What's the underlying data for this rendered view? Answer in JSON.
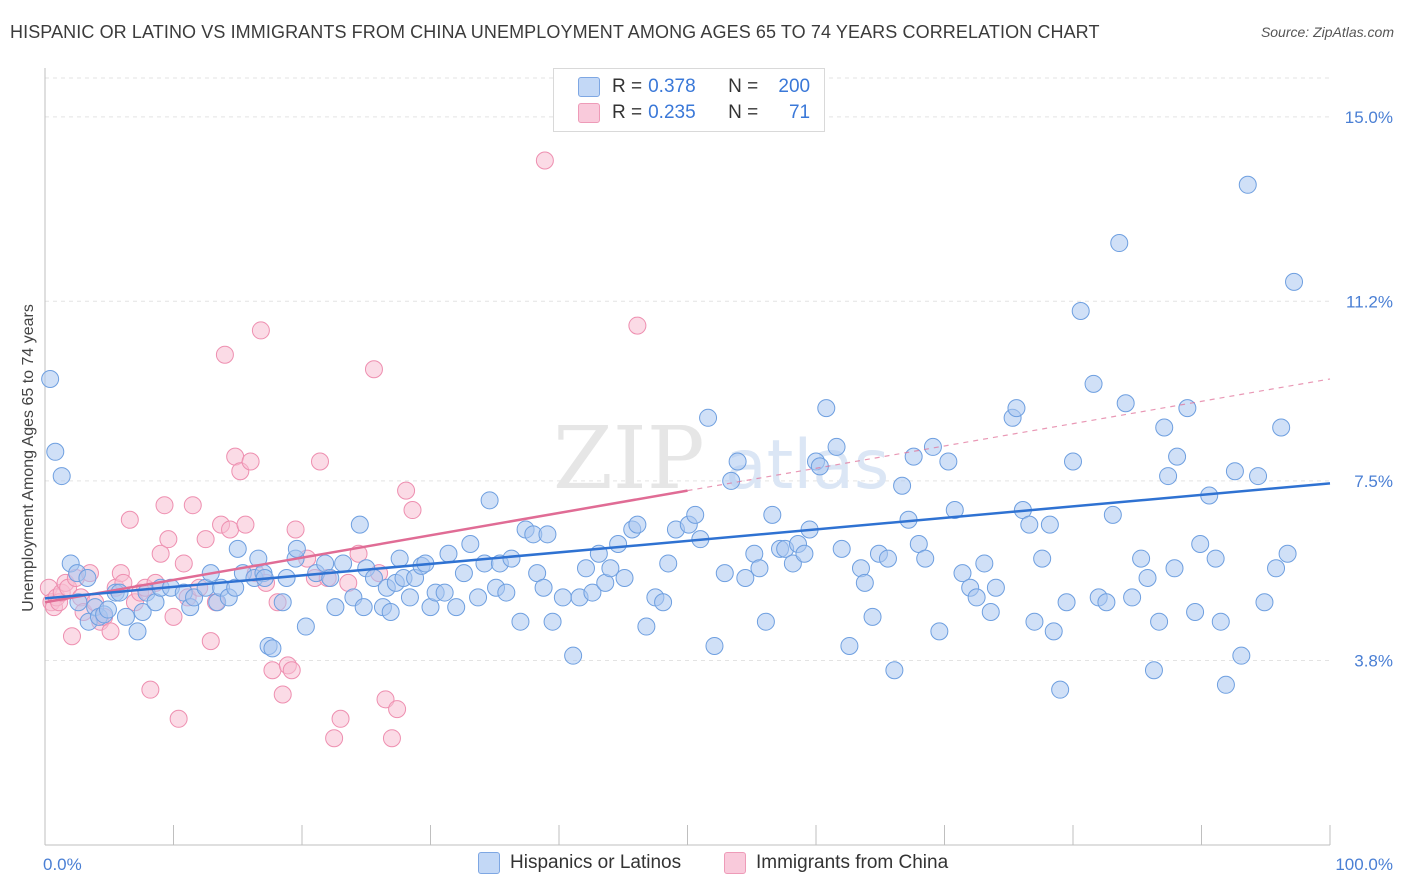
{
  "title": "HISPANIC OR LATINO VS IMMIGRANTS FROM CHINA UNEMPLOYMENT AMONG AGES 65 TO 74 YEARS CORRELATION CHART",
  "source": "Source: ZipAtlas.com",
  "watermark": {
    "part1": "ZIP",
    "part2": "atlas"
  },
  "legend": {
    "rows": [
      {
        "r_label": "R =",
        "r_value": "0.378",
        "n_label": "N =",
        "n_value": "200",
        "color": "#a9c6f0"
      },
      {
        "r_label": "R =",
        "r_value": "0.235",
        "n_label": "N =",
        "n_value": "71",
        "color": "#f7bdd1"
      }
    ]
  },
  "bottom_legend": [
    {
      "label": "Hispanics or Latinos",
      "color": "#a9c6f0"
    },
    {
      "label": "Immigrants from China",
      "color": "#f7bdd1"
    }
  ],
  "chart_data": {
    "type": "scatter",
    "xlabel": "",
    "ylabel": "Unemployment Among Ages 65 to 74 years",
    "xlim": [
      0,
      100
    ],
    "ylim": [
      0,
      15.8
    ],
    "x_tick_labels": [
      "0.0%",
      "100.0%"
    ],
    "y_ticks": [
      3.8,
      7.5,
      11.2,
      15.0
    ],
    "y_tick_labels": [
      "3.8%",
      "7.5%",
      "11.2%",
      "15.0%"
    ],
    "grid": true,
    "series": [
      {
        "name": "Hispanics or Latinos",
        "color": "#a9c6f0",
        "stroke": "#6e9fe0",
        "trend": {
          "x": [
            0,
            100
          ],
          "y": [
            5.08,
            7.45
          ],
          "color": "#2f72d2"
        },
        "points": [
          [
            0.4,
            9.6
          ],
          [
            0.8,
            8.1
          ],
          [
            1.3,
            7.6
          ],
          [
            2.0,
            5.8
          ],
          [
            2.5,
            5.6
          ],
          [
            2.6,
            5.0
          ],
          [
            3.3,
            5.5
          ],
          [
            3.4,
            4.6
          ],
          [
            3.9,
            4.9
          ],
          [
            4.2,
            4.7
          ],
          [
            4.6,
            4.75
          ],
          [
            4.9,
            4.85
          ],
          [
            5.5,
            5.2
          ],
          [
            5.8,
            5.2
          ],
          [
            6.3,
            4.7
          ],
          [
            7.2,
            4.4
          ],
          [
            7.6,
            4.8
          ],
          [
            7.9,
            5.2
          ],
          [
            8.6,
            5.0
          ],
          [
            9.0,
            5.3
          ],
          [
            9.8,
            5.3
          ],
          [
            10.8,
            5.2
          ],
          [
            11.3,
            4.9
          ],
          [
            11.6,
            5.1
          ],
          [
            12.5,
            5.3
          ],
          [
            12.9,
            5.6
          ],
          [
            13.4,
            5.0
          ],
          [
            13.7,
            5.3
          ],
          [
            14.3,
            5.1
          ],
          [
            14.8,
            5.3
          ],
          [
            15.0,
            6.1
          ],
          [
            15.4,
            5.6
          ],
          [
            16.3,
            5.5
          ],
          [
            16.6,
            5.9
          ],
          [
            17.0,
            5.6
          ],
          [
            17.1,
            5.5
          ],
          [
            17.4,
            4.1
          ],
          [
            17.7,
            4.05
          ],
          [
            18.5,
            5.0
          ],
          [
            18.8,
            5.5
          ],
          [
            19.5,
            5.9
          ],
          [
            19.6,
            6.1
          ],
          [
            20.3,
            4.5
          ],
          [
            21.1,
            5.6
          ],
          [
            21.8,
            5.8
          ],
          [
            22.2,
            5.5
          ],
          [
            22.6,
            4.9
          ],
          [
            23.2,
            5.8
          ],
          [
            24.0,
            5.1
          ],
          [
            24.5,
            6.6
          ],
          [
            24.8,
            4.9
          ],
          [
            25.0,
            5.7
          ],
          [
            25.6,
            5.5
          ],
          [
            26.3,
            4.9
          ],
          [
            26.6,
            5.3
          ],
          [
            26.9,
            4.8
          ],
          [
            27.3,
            5.4
          ],
          [
            27.6,
            5.9
          ],
          [
            27.9,
            5.5
          ],
          [
            28.4,
            5.1
          ],
          [
            28.8,
            5.5
          ],
          [
            29.3,
            5.75
          ],
          [
            29.6,
            5.8
          ],
          [
            30.0,
            4.9
          ],
          [
            30.4,
            5.2
          ],
          [
            31.1,
            5.2
          ],
          [
            31.4,
            6.0
          ],
          [
            32.0,
            4.9
          ],
          [
            32.6,
            5.6
          ],
          [
            33.1,
            6.2
          ],
          [
            33.7,
            5.1
          ],
          [
            34.2,
            5.8
          ],
          [
            34.6,
            7.1
          ],
          [
            35.1,
            5.3
          ],
          [
            35.4,
            5.8
          ],
          [
            35.9,
            5.2
          ],
          [
            36.3,
            5.9
          ],
          [
            37.0,
            4.6
          ],
          [
            37.4,
            6.5
          ],
          [
            38.0,
            6.4
          ],
          [
            38.3,
            5.6
          ],
          [
            38.8,
            5.3
          ],
          [
            39.1,
            6.4
          ],
          [
            39.5,
            4.6
          ],
          [
            40.3,
            5.1
          ],
          [
            41.1,
            3.9
          ],
          [
            41.6,
            5.1
          ],
          [
            42.1,
            5.7
          ],
          [
            42.6,
            5.2
          ],
          [
            43.1,
            6.0
          ],
          [
            43.6,
            5.4
          ],
          [
            44.0,
            5.7
          ],
          [
            44.6,
            6.2
          ],
          [
            45.1,
            5.5
          ],
          [
            45.7,
            6.5
          ],
          [
            46.1,
            6.6
          ],
          [
            46.8,
            4.5
          ],
          [
            47.5,
            5.1
          ],
          [
            48.1,
            5.0
          ],
          [
            48.5,
            5.8
          ],
          [
            49.1,
            6.5
          ],
          [
            50.1,
            6.6
          ],
          [
            50.6,
            6.8
          ],
          [
            51.0,
            6.3
          ],
          [
            51.6,
            8.8
          ],
          [
            52.1,
            4.1
          ],
          [
            52.9,
            5.6
          ],
          [
            53.4,
            7.5
          ],
          [
            53.9,
            7.9
          ],
          [
            54.5,
            5.5
          ],
          [
            55.2,
            6.0
          ],
          [
            55.6,
            5.7
          ],
          [
            56.1,
            4.6
          ],
          [
            56.6,
            6.8
          ],
          [
            57.2,
            6.1
          ],
          [
            57.6,
            6.1
          ],
          [
            58.2,
            5.8
          ],
          [
            58.6,
            6.2
          ],
          [
            59.1,
            6.0
          ],
          [
            59.5,
            6.5
          ],
          [
            60.0,
            7.9
          ],
          [
            60.3,
            7.8
          ],
          [
            60.8,
            9.0
          ],
          [
            61.6,
            8.2
          ],
          [
            62.0,
            6.1
          ],
          [
            62.6,
            4.1
          ],
          [
            63.5,
            5.7
          ],
          [
            63.8,
            5.4
          ],
          [
            64.4,
            4.7
          ],
          [
            64.9,
            6.0
          ],
          [
            65.6,
            5.9
          ],
          [
            66.1,
            3.6
          ],
          [
            66.7,
            7.4
          ],
          [
            67.2,
            6.7
          ],
          [
            67.6,
            8.0
          ],
          [
            68.0,
            6.2
          ],
          [
            68.5,
            5.9
          ],
          [
            69.1,
            8.2
          ],
          [
            69.6,
            4.4
          ],
          [
            70.3,
            7.9
          ],
          [
            70.8,
            6.9
          ],
          [
            71.4,
            5.6
          ],
          [
            72.0,
            5.3
          ],
          [
            72.5,
            5.1
          ],
          [
            73.1,
            5.8
          ],
          [
            73.6,
            4.8
          ],
          [
            74.0,
            5.3
          ],
          [
            75.3,
            8.8
          ],
          [
            75.6,
            9.0
          ],
          [
            76.1,
            6.9
          ],
          [
            76.6,
            6.6
          ],
          [
            77.0,
            4.6
          ],
          [
            77.6,
            5.9
          ],
          [
            78.2,
            6.6
          ],
          [
            78.5,
            4.4
          ],
          [
            79.0,
            3.2
          ],
          [
            79.5,
            5.0
          ],
          [
            80.0,
            7.9
          ],
          [
            80.6,
            11.0
          ],
          [
            81.6,
            9.5
          ],
          [
            82.0,
            5.1
          ],
          [
            82.6,
            5.0
          ],
          [
            83.1,
            6.8
          ],
          [
            83.6,
            12.4
          ],
          [
            84.1,
            9.1
          ],
          [
            84.6,
            5.1
          ],
          [
            85.3,
            5.9
          ],
          [
            85.8,
            5.5
          ],
          [
            86.3,
            3.6
          ],
          [
            86.7,
            4.6
          ],
          [
            87.1,
            8.6
          ],
          [
            87.4,
            7.6
          ],
          [
            87.9,
            5.7
          ],
          [
            88.1,
            8.0
          ],
          [
            88.9,
            9.0
          ],
          [
            89.5,
            4.8
          ],
          [
            89.9,
            6.2
          ],
          [
            90.6,
            7.2
          ],
          [
            91.1,
            5.9
          ],
          [
            91.5,
            4.6
          ],
          [
            91.9,
            3.3
          ],
          [
            92.6,
            7.7
          ],
          [
            93.1,
            3.9
          ],
          [
            93.6,
            13.6
          ],
          [
            94.4,
            7.6
          ],
          [
            94.9,
            5.0
          ],
          [
            95.8,
            5.7
          ],
          [
            96.2,
            8.6
          ],
          [
            96.7,
            6.0
          ],
          [
            97.2,
            11.6
          ]
        ]
      },
      {
        "name": "Immigrants from China",
        "color": "#f7bdd1",
        "stroke": "#ee8fb0",
        "trend": {
          "x": [
            0,
            50
          ],
          "y": [
            5.0,
            7.3
          ],
          "dashed_to": [
            100,
            9.6
          ],
          "color": "#e06c95"
        },
        "points": [
          [
            0.3,
            5.3
          ],
          [
            0.5,
            5.0
          ],
          [
            0.7,
            4.9
          ],
          [
            0.9,
            5.1
          ],
          [
            1.1,
            5.0
          ],
          [
            1.3,
            5.2
          ],
          [
            1.6,
            5.4
          ],
          [
            1.8,
            5.3
          ],
          [
            2.1,
            4.3
          ],
          [
            2.4,
            5.5
          ],
          [
            2.8,
            5.1
          ],
          [
            3.0,
            4.8
          ],
          [
            3.5,
            5.6
          ],
          [
            3.9,
            5.0
          ],
          [
            4.3,
            4.6
          ],
          [
            4.6,
            4.7
          ],
          [
            5.1,
            4.4
          ],
          [
            5.5,
            5.3
          ],
          [
            5.9,
            5.6
          ],
          [
            6.1,
            5.4
          ],
          [
            6.6,
            6.7
          ],
          [
            7.0,
            5.0
          ],
          [
            7.4,
            5.2
          ],
          [
            7.8,
            5.3
          ],
          [
            8.2,
            3.2
          ],
          [
            8.6,
            5.4
          ],
          [
            9.0,
            6.0
          ],
          [
            9.3,
            7.0
          ],
          [
            9.6,
            6.3
          ],
          [
            10.0,
            4.7
          ],
          [
            10.4,
            2.6
          ],
          [
            10.8,
            5.8
          ],
          [
            11.1,
            5.1
          ],
          [
            11.5,
            7.0
          ],
          [
            12.0,
            5.3
          ],
          [
            12.5,
            6.3
          ],
          [
            12.9,
            4.2
          ],
          [
            13.3,
            5.0
          ],
          [
            13.7,
            6.6
          ],
          [
            14.0,
            10.1
          ],
          [
            14.4,
            6.5
          ],
          [
            14.8,
            8.0
          ],
          [
            15.2,
            7.7
          ],
          [
            15.6,
            6.6
          ],
          [
            16.0,
            7.9
          ],
          [
            16.4,
            5.6
          ],
          [
            16.8,
            10.6
          ],
          [
            17.2,
            5.4
          ],
          [
            17.7,
            3.6
          ],
          [
            18.1,
            5.0
          ],
          [
            18.5,
            3.1
          ],
          [
            18.9,
            3.7
          ],
          [
            19.2,
            3.6
          ],
          [
            19.5,
            6.5
          ],
          [
            20.4,
            5.9
          ],
          [
            21.0,
            5.5
          ],
          [
            21.4,
            7.9
          ],
          [
            22.0,
            5.5
          ],
          [
            22.5,
            2.2
          ],
          [
            23.0,
            2.6
          ],
          [
            23.6,
            5.4
          ],
          [
            24.4,
            6.0
          ],
          [
            25.6,
            9.8
          ],
          [
            26.0,
            5.6
          ],
          [
            26.5,
            3.0
          ],
          [
            27.0,
            2.2
          ],
          [
            27.4,
            2.8
          ],
          [
            28.1,
            7.3
          ],
          [
            28.6,
            6.9
          ],
          [
            38.9,
            14.1
          ],
          [
            46.1,
            10.7
          ]
        ]
      }
    ]
  }
}
